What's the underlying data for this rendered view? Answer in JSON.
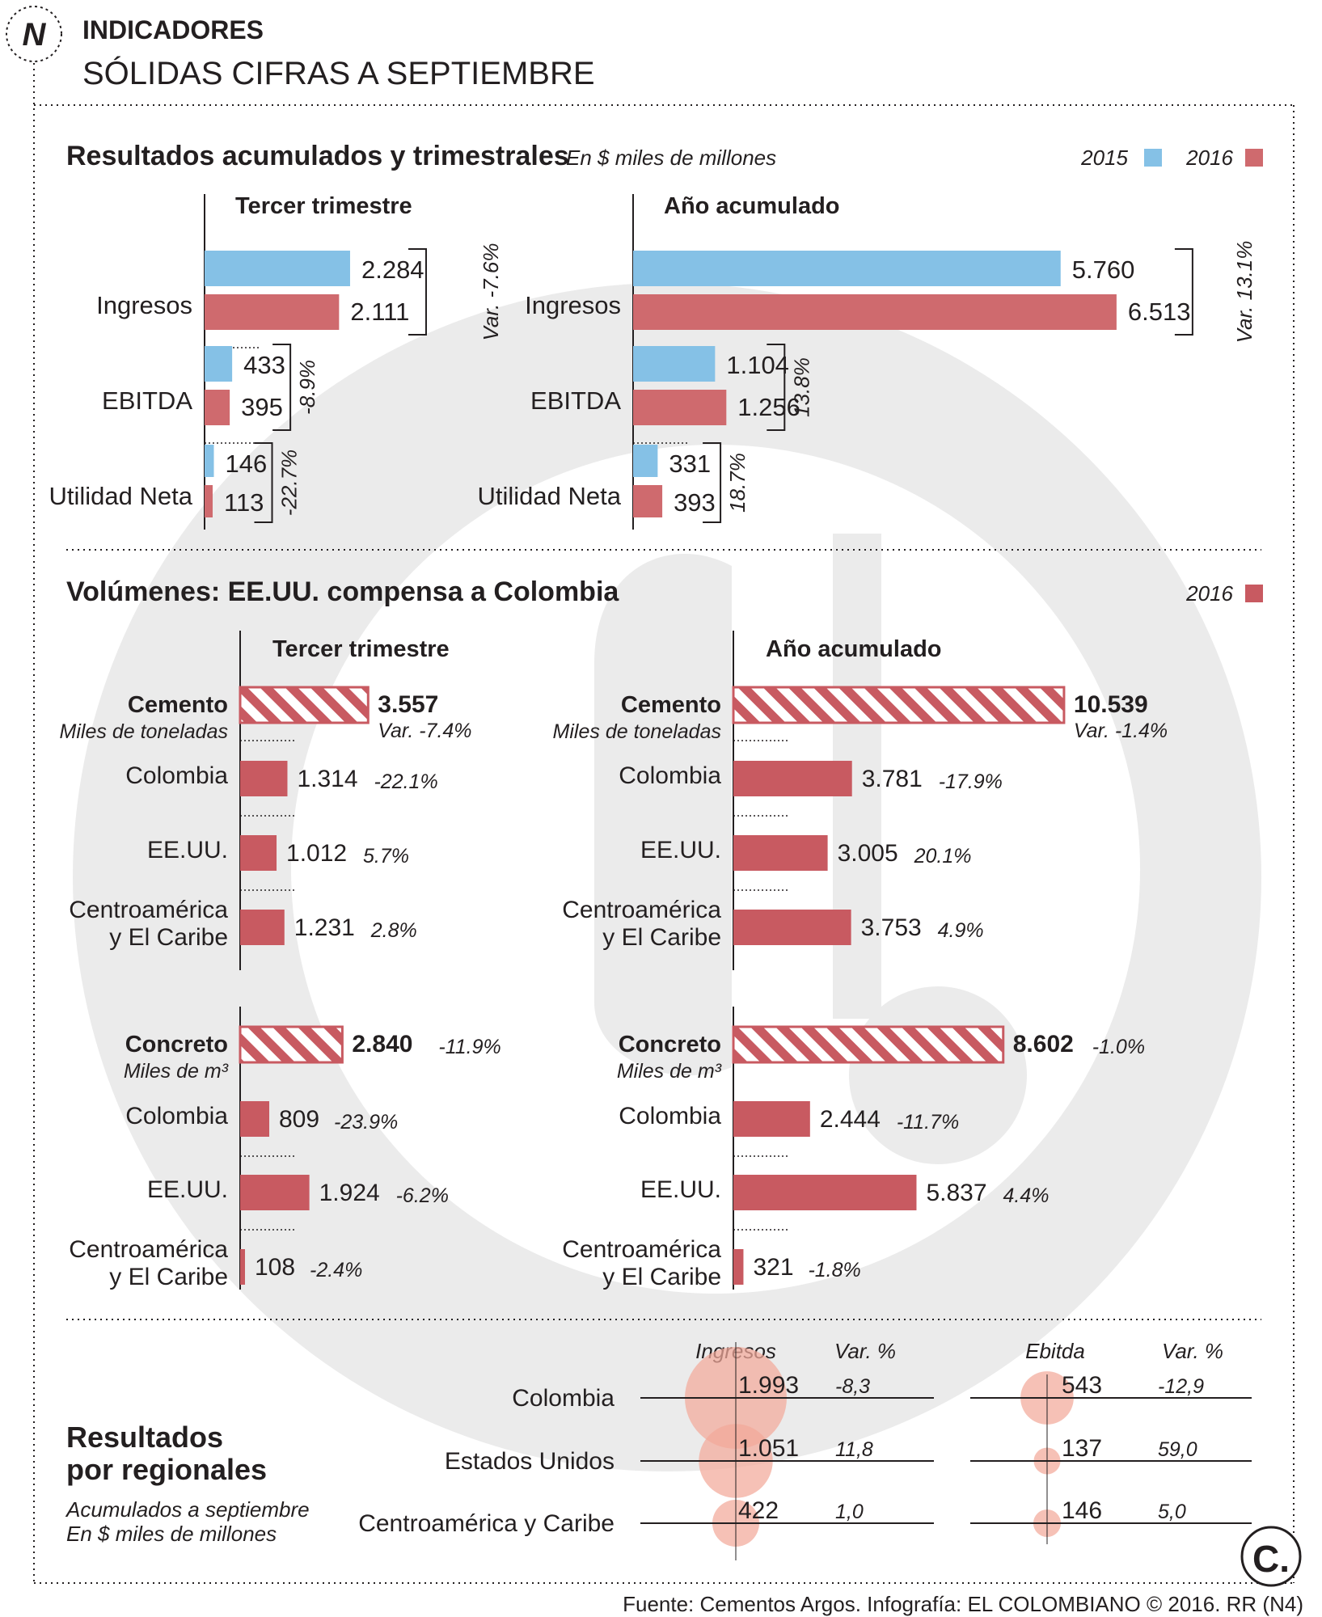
{
  "header": {
    "section": "INDICADORES",
    "title": "SÓLIDAS CIFRAS A SEPTIEMBRE",
    "logo_letter": "N"
  },
  "colors": {
    "y2015": "#85c1e6",
    "y2016": "#cf6a6e",
    "bar2016": "#c85a61",
    "hatch": "#c85a61",
    "bubble": "#f3a99a",
    "watermark": "#ebebeb",
    "text": "#231f20"
  },
  "financial": {
    "title": "Resultados acumulados y trimestrales",
    "subtitle": "En $ miles de millones",
    "legend": [
      "2015",
      "2016"
    ]
  },
  "volumes": {
    "title": "Volúmenes: EE.UU. compensa a Colombia",
    "legend": "2016"
  },
  "regional": {
    "title_line1": "Resultados",
    "title_line2": "por regionales",
    "note_line1": "Acumulados a septiembre",
    "note_line2": "En $ miles de millones",
    "headers": [
      "Ingresos",
      "Var. %",
      "Ebitda",
      "Var. %"
    ]
  },
  "footer": {
    "source": "Fuente: Cementos Argos. Infografía: EL COLOMBIANO © 2016. RR (N4)",
    "brand_letter": "C."
  },
  "chart_data": [
    {
      "type": "bar",
      "panel": "Tercer trimestre",
      "categories": [
        "Ingresos",
        "EBITDA",
        "Utilidad Neta"
      ],
      "series": [
        {
          "name": "2015",
          "values": [
            2284,
            433,
            146
          ],
          "labels": [
            "2.284",
            "433",
            "146"
          ]
        },
        {
          "name": "2016",
          "values": [
            2111,
            395,
            113
          ],
          "labels": [
            "2.111",
            "395",
            "113"
          ]
        }
      ],
      "variations": [
        "Var. -7.6%",
        "-8.9%",
        "-22.7%"
      ]
    },
    {
      "type": "bar",
      "panel": "Año acumulado",
      "categories": [
        "Ingresos",
        "EBITDA",
        "Utilidad Neta"
      ],
      "series": [
        {
          "name": "2015",
          "values": [
            5760,
            1104,
            331
          ],
          "labels": [
            "5.760",
            "1.104",
            "331"
          ]
        },
        {
          "name": "2016",
          "values": [
            6513,
            1256,
            393
          ],
          "labels": [
            "6.513",
            "1.256",
            "393"
          ]
        }
      ],
      "variations": [
        "Var. 13.1%",
        "13.8%",
        "18.7%"
      ]
    },
    {
      "type": "bar",
      "panel": "Tercer trimestre",
      "product": "Cemento",
      "unit": "Miles de toneladas",
      "total": {
        "value": 3557,
        "label": "3.557",
        "var": "Var. -7.4%"
      },
      "categories": [
        "Colombia",
        "EE.UU.",
        "Centroamérica|y El Caribe"
      ],
      "values": [
        1314,
        1012,
        1231
      ],
      "labels": [
        "1.314",
        "1.012",
        "1.231"
      ],
      "vars": [
        "-22.1%",
        "5.7%",
        "2.8%"
      ]
    },
    {
      "type": "bar",
      "panel": "Año acumulado",
      "product": "Cemento",
      "unit": "Miles de toneladas",
      "total": {
        "value": 10539,
        "label": "10.539",
        "var": "Var. -1.4%"
      },
      "categories": [
        "Colombia",
        "EE.UU.",
        "Centroamérica|y El Caribe"
      ],
      "values": [
        3781,
        3005,
        3753
      ],
      "labels": [
        "3.781",
        "3.005",
        "3.753"
      ],
      "vars": [
        "-17.9%",
        "20.1%",
        "4.9%"
      ]
    },
    {
      "type": "bar",
      "panel": "Tercer trimestre",
      "product": "Concreto",
      "unit": "Miles de m³",
      "total": {
        "value": 2840,
        "label": "2.840",
        "var": "-11.9%"
      },
      "categories": [
        "Colombia",
        "EE.UU.",
        "Centroamérica|y El Caribe"
      ],
      "values": [
        809,
        1924,
        108
      ],
      "labels": [
        "809",
        "1.924",
        "108"
      ],
      "vars": [
        "-23.9%",
        "-6.2%",
        "-2.4%"
      ]
    },
    {
      "type": "bar",
      "panel": "Año acumulado",
      "product": "Concreto",
      "unit": "Miles de m³",
      "total": {
        "value": 8602,
        "label": "8.602",
        "var": "-1.0%"
      },
      "categories": [
        "Colombia",
        "EE.UU.",
        "Centroamérica|y El Caribe"
      ],
      "values": [
        2444,
        5837,
        321
      ],
      "labels": [
        "2.444",
        "5.837",
        "321"
      ],
      "vars": [
        "-11.7%",
        "4.4%",
        "-1.8%"
      ]
    },
    {
      "type": "table",
      "columns": [
        "Ingresos",
        "Var. %",
        "Ebitda",
        "Var. %"
      ],
      "rows": [
        {
          "region": "Colombia",
          "ingresos": 1993,
          "ingresos_label": "1.993",
          "var_ing": "-8,3",
          "ebitda": 543,
          "ebitda_label": "543",
          "var_ebitda": "-12,9"
        },
        {
          "region": "Estados Unidos",
          "ingresos": 1051,
          "ingresos_label": "1.051",
          "var_ing": "11,8",
          "ebitda": 137,
          "ebitda_label": "137",
          "var_ebitda": "59,0"
        },
        {
          "region": "Centroamérica y Caribe",
          "ingresos": 422,
          "ingresos_label": "422",
          "var_ing": "1,0",
          "ebitda": 146,
          "ebitda_label": "146",
          "var_ebitda": "5,0"
        }
      ]
    }
  ]
}
